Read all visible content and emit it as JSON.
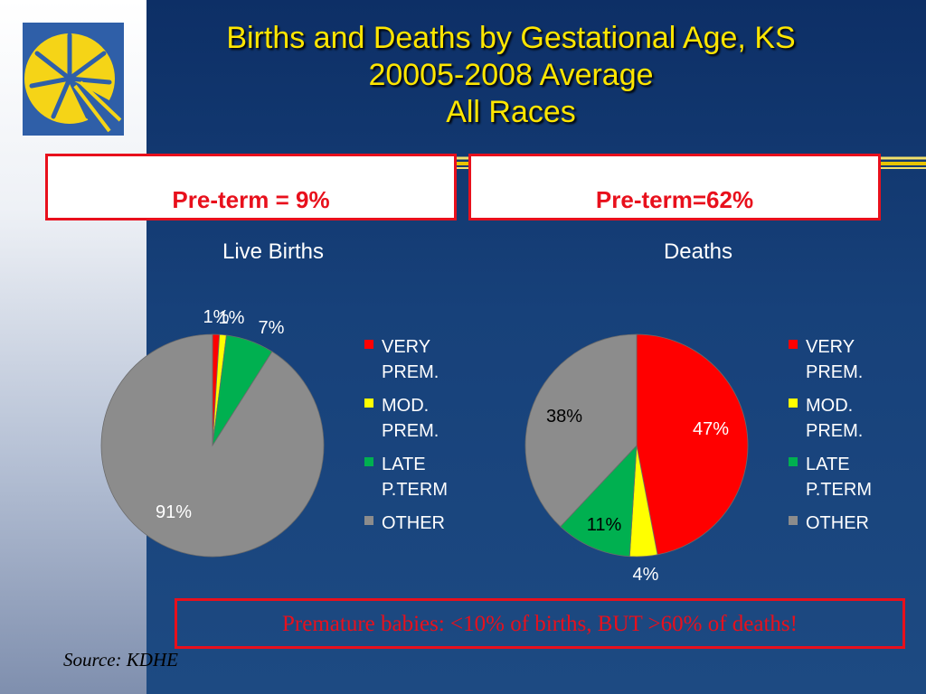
{
  "title": {
    "line1": "Births and Deaths by Gestational Age, KS",
    "line2": "20005-2008 Average",
    "line3": "All Races"
  },
  "summary": {
    "left": "Pre-term = 9%",
    "right": "Pre-term=62%"
  },
  "note": "Premature babies: <10% of births, BUT >60% of deaths!",
  "source": "Source: KDHE",
  "colors": {
    "very_prem": "#ff0000",
    "mod_prem": "#ffff00",
    "late_pterm": "#00b050",
    "other": "#8c8c8c",
    "title": "#ffe600",
    "accent_red": "#e8101c"
  },
  "chart_data": [
    {
      "type": "pie",
      "title": "Live Births",
      "categories": [
        "VERY PREM.",
        "MOD. PREM.",
        "LATE P.TERM",
        "OTHER"
      ],
      "values": [
        1,
        1,
        7,
        91
      ],
      "labels": [
        "1%",
        "1%",
        "7%",
        "91%"
      ],
      "legend_placement": "right"
    },
    {
      "type": "pie",
      "title": "Deaths",
      "categories": [
        "VERY PREM.",
        "MOD. PREM.",
        "LATE P.TERM",
        "OTHER"
      ],
      "values": [
        47,
        4,
        11,
        38
      ],
      "labels": [
        "47%",
        "4%",
        "11%",
        "38%"
      ],
      "legend_placement": "right"
    }
  ]
}
